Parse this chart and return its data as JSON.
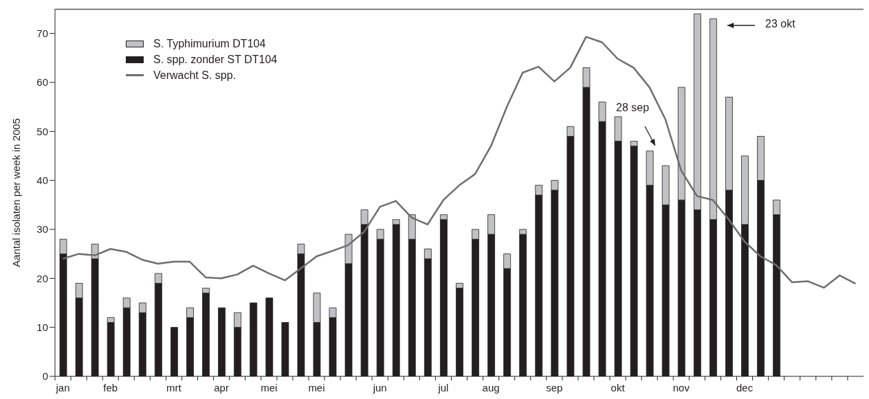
{
  "chart_data": {
    "type": "bar",
    "stacked": true,
    "ylabel": "Aantal isolaten per week in 2005",
    "categories": [
      "jan",
      null,
      null,
      "feb",
      null,
      null,
      null,
      "mrt",
      null,
      null,
      "apr",
      null,
      null,
      "mei",
      null,
      null,
      "mei",
      null,
      null,
      null,
      "jun",
      null,
      null,
      null,
      "jul",
      null,
      null,
      "aug",
      null,
      null,
      null,
      "sep",
      null,
      null,
      null,
      "okt",
      null,
      null,
      null,
      "nov",
      null,
      null,
      null,
      "dec",
      null,
      null,
      null,
      null,
      null,
      null,
      null
    ],
    "series": [
      {
        "name": "S. spp. zonder ST DT104",
        "color": "#231f20",
        "values": [
          25,
          16,
          24,
          11,
          14,
          13,
          19,
          10,
          12,
          17,
          14,
          10,
          15,
          16,
          11,
          25,
          11,
          12,
          23,
          31,
          28,
          31,
          28,
          24,
          32,
          18,
          28,
          29,
          22,
          29,
          37,
          38,
          49,
          59,
          52,
          48,
          47,
          39,
          35,
          36,
          34,
          32,
          38,
          31,
          40,
          33,
          null,
          null,
          null,
          null,
          null
        ]
      },
      {
        "name": "S. Typhimurium DT104",
        "color": "#c0c1c4",
        "values": [
          3,
          3,
          3,
          1,
          2,
          2,
          2,
          0,
          2,
          1,
          0,
          3,
          0,
          0,
          0,
          2,
          6,
          2,
          6,
          3,
          2,
          1,
          5,
          2,
          1,
          1,
          2,
          4,
          3,
          1,
          2,
          2,
          2,
          4,
          4,
          5,
          1,
          7,
          8,
          23,
          40,
          41,
          19,
          14,
          9,
          3,
          null,
          null,
          null,
          null,
          null
        ]
      },
      {
        "name": "Verwacht S. spp.",
        "type": "line",
        "color": "#6d6d6d",
        "values": [
          24,
          25,
          24.7,
          26,
          25.4,
          23.8,
          23,
          23.4,
          23.4,
          20.2,
          20,
          20.8,
          22.6,
          21,
          19.6,
          22,
          24.5,
          25.6,
          26.8,
          29.5,
          34.6,
          35.8,
          32.4,
          31,
          36,
          39,
          41.3,
          47,
          55,
          62,
          63.2,
          60.2,
          63,
          69.3,
          68.2,
          64.8,
          63,
          59,
          52.5,
          42,
          36.8,
          36,
          32,
          27.5,
          24.5,
          22.7,
          19.2,
          19.4,
          18.1,
          20.6,
          18.9
        ]
      }
    ],
    "ylim": [
      0,
      75
    ],
    "yticks": [
      0,
      10,
      20,
      30,
      40,
      50,
      60,
      70
    ],
    "grid": false,
    "legend": "top left",
    "annotations": [
      "23 okt",
      "28 sep"
    ]
  }
}
